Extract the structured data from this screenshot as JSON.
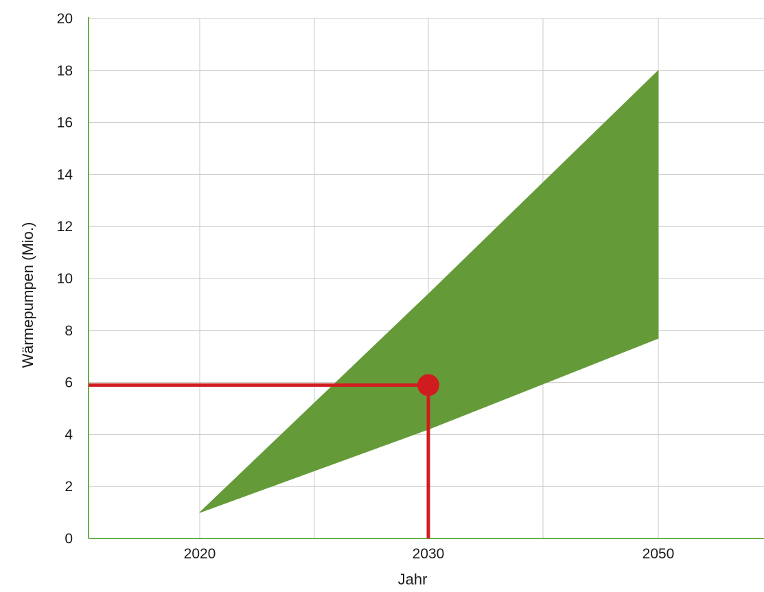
{
  "chart_data": {
    "type": "area",
    "title": "",
    "xlabel": "Jahr",
    "ylabel": "Wärmepumpen (Mio.)",
    "ylim": [
      0,
      20
    ],
    "y_ticks": [
      "0",
      "2",
      "4",
      "6",
      "8",
      "10",
      "12",
      "14",
      "16",
      "18",
      "20"
    ],
    "x_ticks": [
      "2020",
      "2030",
      "2050"
    ],
    "grid": true,
    "legend": "none",
    "series": [
      {
        "role": "range band",
        "color": "#649b38",
        "x": [
          "2020",
          "2030",
          "2050"
        ],
        "upper": [
          1.0,
          9.4,
          18.0
        ],
        "lower": [
          1.0,
          4.2,
          7.7
        ]
      }
    ],
    "highlight": {
      "x": "2030",
      "y": 5.9,
      "color": "#d01c1f"
    },
    "axis_color": "#6ab04c",
    "grid_color": "#c8c8c8"
  }
}
